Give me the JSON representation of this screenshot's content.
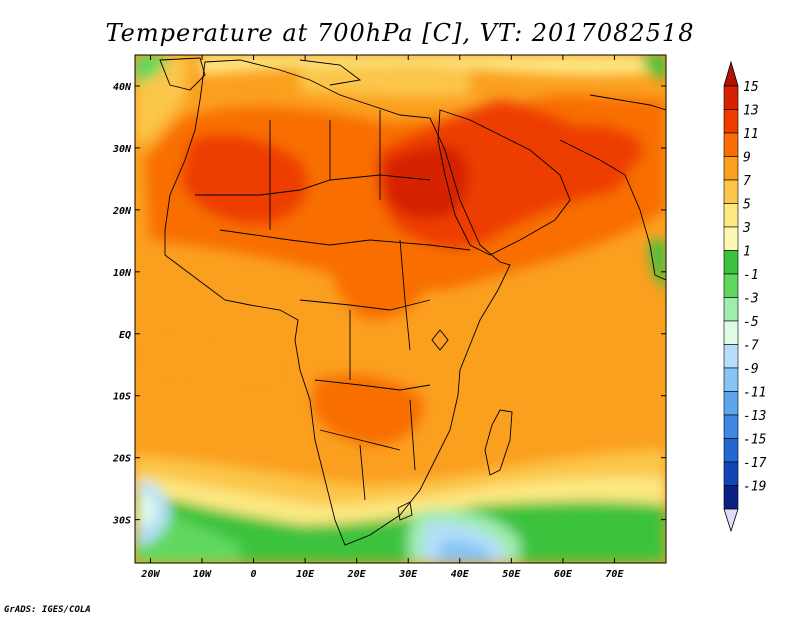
{
  "title": "Temperature at 700hPa [C], VT: 2017082518",
  "credit": "GrADS: IGES/COLA",
  "map": {
    "lon_range": [
      -23,
      80
    ],
    "lat_range": [
      -37,
      45
    ],
    "lat_ticks": [
      {
        "value": 40,
        "label": "40N"
      },
      {
        "value": 30,
        "label": "30N"
      },
      {
        "value": 20,
        "label": "20N"
      },
      {
        "value": 10,
        "label": "10N"
      },
      {
        "value": 0,
        "label": "EQ"
      },
      {
        "value": -10,
        "label": "10S"
      },
      {
        "value": -20,
        "label": "20S"
      },
      {
        "value": -30,
        "label": "30S"
      }
    ],
    "lon_ticks": [
      {
        "value": -20,
        "label": "20W"
      },
      {
        "value": -10,
        "label": "10W"
      },
      {
        "value": 0,
        "label": "0"
      },
      {
        "value": 10,
        "label": "10E"
      },
      {
        "value": 20,
        "label": "20E"
      },
      {
        "value": 30,
        "label": "30E"
      },
      {
        "value": 40,
        "label": "40E"
      },
      {
        "value": 50,
        "label": "50E"
      },
      {
        "value": 60,
        "label": "60E"
      },
      {
        "value": 70,
        "label": "70E"
      }
    ]
  },
  "colorbar": {
    "levels": [
      {
        "label": "15",
        "color": "#d62200"
      },
      {
        "label": "13",
        "color": "#ee3c00"
      },
      {
        "label": "11",
        "color": "#f86e06"
      },
      {
        "label": "9",
        "color": "#fb9f1f"
      },
      {
        "label": "7",
        "color": "#fbc64a"
      },
      {
        "label": "5",
        "color": "#fde882"
      },
      {
        "label": "3",
        "color": "#fdf6b4"
      },
      {
        "label": "1",
        "color": "#3cc23c"
      },
      {
        "label": "-1",
        "color": "#60d860"
      },
      {
        "label": "-3",
        "color": "#a0ecae"
      },
      {
        "label": "-5",
        "color": "#e0fae8"
      },
      {
        "label": "-7",
        "color": "#b4defa"
      },
      {
        "label": "-9",
        "color": "#86c4f4"
      },
      {
        "label": "-11",
        "color": "#5ea6ec"
      },
      {
        "label": "-13",
        "color": "#3e88e2"
      },
      {
        "label": "-15",
        "color": "#2466d4"
      },
      {
        "label": "-17",
        "color": "#1246b4"
      },
      {
        "label": "-19",
        "color": "#0a2082"
      }
    ],
    "top_cap_color": "#b01400",
    "bottom_cap_color": "#e0dcfa"
  }
}
